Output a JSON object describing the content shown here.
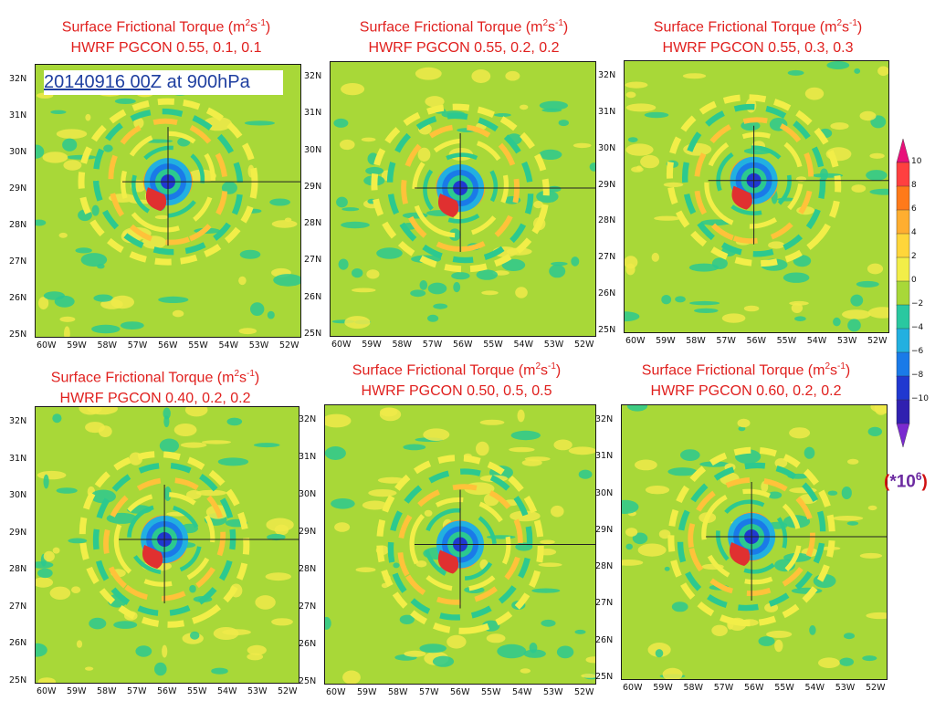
{
  "date_label": {
    "date": "20140916 00",
    "rest": "Z at 900hPa"
  },
  "panels": [
    {
      "title1": "Surface Frictional Torque (m",
      "sup1": "2",
      "mid": "s",
      "sup2": "-1",
      "close": ")",
      "title2": "HWRF PGCON 0.55, 0.1, 0.1"
    },
    {
      "title1": "Surface Frictional Torque (m",
      "sup1": "2",
      "mid": "s",
      "sup2": "-1",
      "close": ")",
      "title2": "HWRF PGCON 0.55, 0.2, 0.2"
    },
    {
      "title1": "Surface Frictional Torque (m",
      "sup1": "2",
      "mid": "s",
      "sup2": "-1",
      "close": ")",
      "title2": "HWRF PGCON 0.55, 0.3, 0.3"
    },
    {
      "title1": "Surface Frictional Torque (m",
      "sup1": "2",
      "mid": "s",
      "sup2": "-1",
      "close": ")",
      "title2": "HWRF PGCON 0.40, 0.2, 0.2"
    },
    {
      "title1": "Surface Frictional Torque (m",
      "sup1": "2",
      "mid": "s",
      "sup2": "-1",
      "close": ")",
      "title2": "HWRF PGCON 0.50, 0.5, 0.5"
    },
    {
      "title1": "Surface Frictional Torque (m",
      "sup1": "2",
      "mid": "s",
      "sup2": "-1",
      "close": ")",
      "title2": "HWRF PGCON 0.60, 0.2, 0.2"
    }
  ],
  "lat_labels": [
    "32N",
    "31N",
    "30N",
    "29N",
    "28N",
    "27N",
    "26N",
    "25N"
  ],
  "lon_labels": [
    "60W",
    "59W",
    "58W",
    "57W",
    "56W",
    "55W",
    "54W",
    "53W",
    "52W"
  ],
  "colorbar": {
    "labels": [
      "10",
      "8",
      "6",
      "4",
      "2",
      "0",
      "−2",
      "−4",
      "−6",
      "−8",
      "−10"
    ],
    "colors": [
      "#e8107a",
      "#ff4040",
      "#ff7a1a",
      "#ffae30",
      "#ffd63a",
      "#f2ee48",
      "#a8d838",
      "#29c8a0",
      "#22b0e0",
      "#1a7ae8",
      "#2038d0",
      "#3020b0",
      "#7a2ad0"
    ]
  },
  "scale_text": {
    "open": "(",
    "value": "*10",
    "sup": "6",
    "close": ")"
  }
}
